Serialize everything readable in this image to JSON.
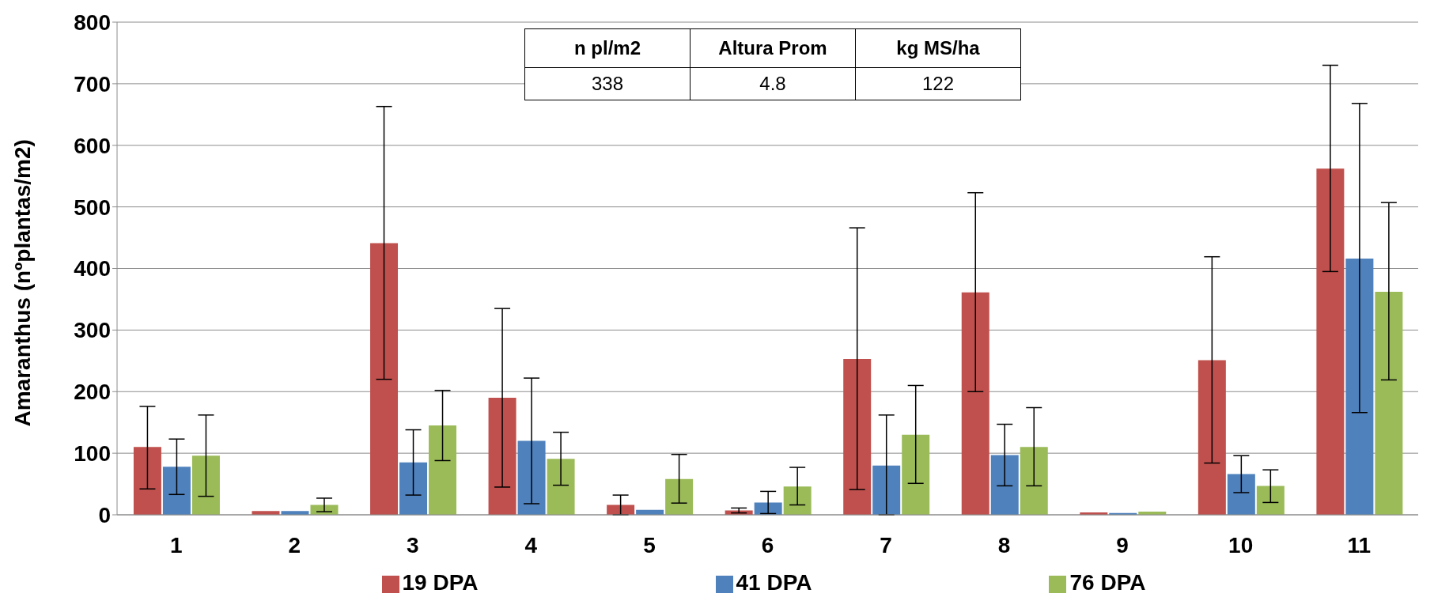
{
  "chart_data": {
    "type": "bar",
    "ylabel": "Amaranthus (nºplantas/m2)",
    "categories": [
      "1",
      "2",
      "3",
      "4",
      "5",
      "6",
      "7",
      "8",
      "9",
      "10",
      "11"
    ],
    "series": [
      {
        "name": "19 DPA",
        "color": "#c0504d",
        "values": [
          110,
          6,
          441,
          190,
          16,
          7,
          253,
          361,
          4,
          251,
          562
        ],
        "errors": [
          [
            42,
            176
          ],
          null,
          [
            220,
            663
          ],
          [
            45,
            335
          ],
          [
            0,
            32
          ],
          [
            3,
            11
          ],
          [
            41,
            466
          ],
          [
            200,
            523
          ],
          null,
          [
            84,
            419
          ],
          [
            395,
            730
          ]
        ]
      },
      {
        "name": "41 DPA",
        "color": "#4f81bd",
        "values": [
          78,
          6,
          85,
          120,
          8,
          20,
          80,
          97,
          3,
          66,
          416
        ],
        "errors": [
          [
            33,
            123
          ],
          null,
          [
            32,
            138
          ],
          [
            18,
            222
          ],
          null,
          [
            2,
            38
          ],
          [
            0,
            162
          ],
          [
            47,
            147
          ],
          null,
          [
            36,
            96
          ],
          [
            166,
            668
          ]
        ]
      },
      {
        "name": "76 DPA",
        "color": "#9bbb59",
        "values": [
          96,
          16,
          145,
          91,
          58,
          46,
          130,
          110,
          5,
          47,
          362
        ],
        "errors": [
          [
            30,
            162
          ],
          [
            5,
            27
          ],
          [
            88,
            202
          ],
          [
            48,
            134
          ],
          [
            19,
            98
          ],
          [
            16,
            77
          ],
          [
            51,
            210
          ],
          [
            47,
            174
          ],
          null,
          [
            20,
            73
          ],
          [
            219,
            507
          ]
        ]
      }
    ],
    "ylim": [
      0,
      800
    ],
    "yticks": [
      0,
      100,
      200,
      300,
      400,
      500,
      600,
      700,
      800
    ],
    "grid": "y",
    "legend": "bottom",
    "annotations": [
      "n pl/m2",
      "Altura Prom",
      "kg MS/ha",
      "338",
      "4.8",
      "122"
    ]
  }
}
